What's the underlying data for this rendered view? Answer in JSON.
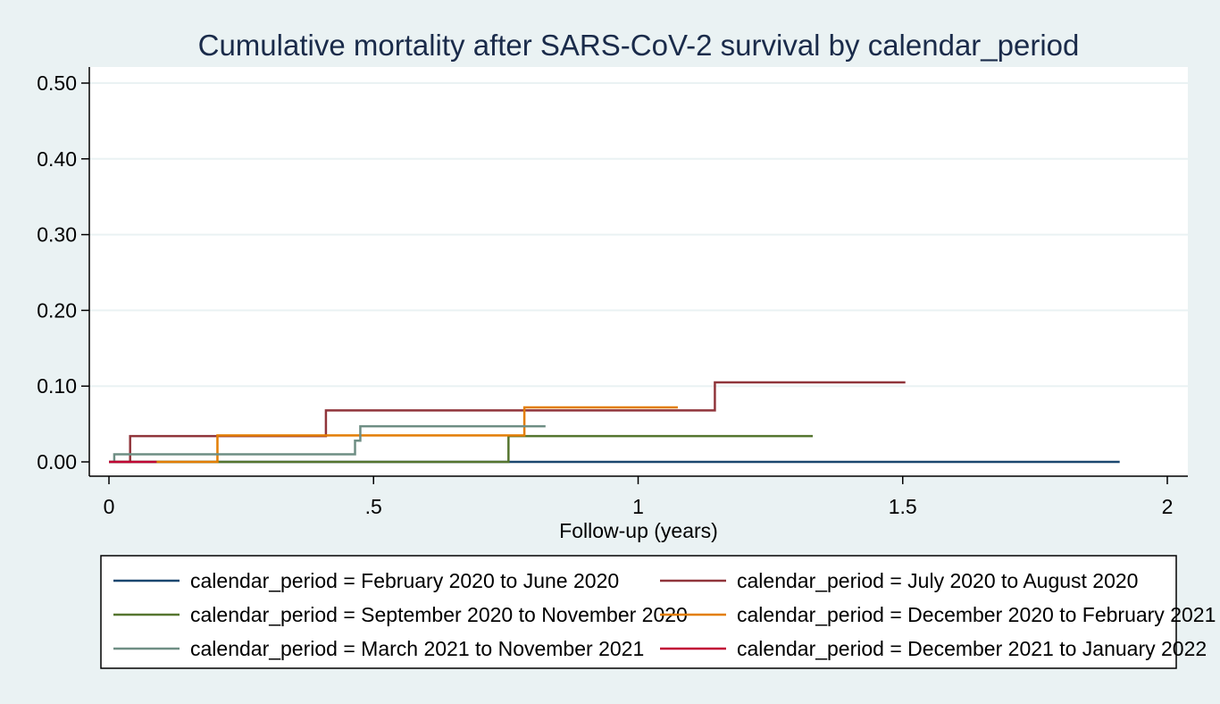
{
  "chart_data": {
    "type": "line",
    "step": true,
    "title": "Cumulative mortality after SARS-CoV-2 survival by calendar_period",
    "xlabel": "Follow-up (years)",
    "ylabel": "",
    "xlim": [
      0,
      2
    ],
    "ylim": [
      0,
      0.5
    ],
    "x_ticks": [
      0,
      0.5,
      1,
      1.5,
      2
    ],
    "x_tick_labels": [
      "0",
      ".5",
      "1",
      "1.5",
      "2"
    ],
    "y_ticks": [
      0,
      0.1,
      0.2,
      0.3,
      0.4,
      0.5
    ],
    "y_tick_labels": [
      "0.00",
      "0.10",
      "0.20",
      "0.30",
      "0.40",
      "0.50"
    ],
    "grid": "horizontal",
    "legend_position": "bottom",
    "series": [
      {
        "name": "calendar_period = February 2020 to June 2020",
        "color": "#1a476f",
        "x": [
          0,
          1.91
        ],
        "y": [
          0,
          0
        ]
      },
      {
        "name": "calendar_period = July 2020 to August 2020",
        "color": "#90353b",
        "x": [
          0,
          0.04,
          0.41,
          1.145,
          1.505
        ],
        "y": [
          0,
          0.034,
          0.068,
          0.105,
          0.105
        ]
      },
      {
        "name": "calendar_period = September 2020 to November 2020",
        "color": "#55752f",
        "x": [
          0,
          0.755,
          1.33
        ],
        "y": [
          0,
          0.034,
          0.034
        ]
      },
      {
        "name": "calendar_period = December 2020 to February 2021",
        "color": "#e37e00",
        "x": [
          0.09,
          0.205,
          0.785,
          1.075
        ],
        "y": [
          0,
          0.035,
          0.072,
          0.072
        ]
      },
      {
        "name": "calendar_period = March 2021 to November 2021",
        "color": "#6e8e84",
        "x": [
          0,
          0.01,
          0.465,
          0.475,
          0.825
        ],
        "y": [
          0,
          0.01,
          0.028,
          0.047,
          0.047
        ]
      },
      {
        "name": "calendar_period = December 2021 to January 2022",
        "color": "#c10534",
        "x": [
          0,
          0.09
        ],
        "y": [
          0,
          0
        ]
      }
    ]
  }
}
